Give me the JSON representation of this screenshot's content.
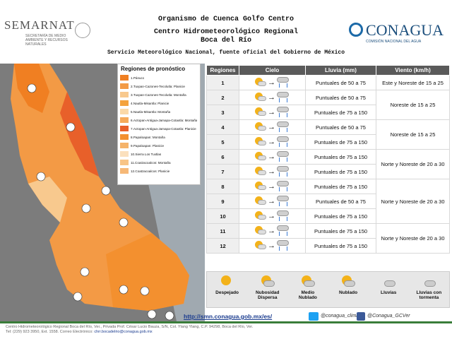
{
  "header": {
    "logo_left": "SEMARNAT",
    "logo_left_sub": "SECRETARÍA DE MEDIO AMBIENTE Y RECURSOS NATURALES",
    "title_line1": "Organismo de Cuenca Golfo Centro",
    "title_line2": "Centro Hidrometeorológico Regional",
    "title_line3": "Boca del Río",
    "subtitle": "Servicio Meteorológico Nacional, fuente oficial del Gobierno de México",
    "logo_right": "CONAGUA",
    "logo_right_sub": "COMISIÓN NACIONAL DEL AGUA"
  },
  "legend": {
    "title": "Regiones de pronóstico",
    "items": [
      {
        "label": "1.Pánuco",
        "color": "#f07f22"
      },
      {
        "label": "2.Tuxpan-Cazones-Tecolutla: Planicie",
        "color": "#f39a45"
      },
      {
        "label": "3.Tuxpan-Cazones-Tecolutla: Montaña",
        "color": "#f8c98e"
      },
      {
        "label": "4.Nautla-Misantla: Planicie",
        "color": "#f4a23c"
      },
      {
        "label": "5.Nautla-Misantla: Montaña",
        "color": "#fbd9a8"
      },
      {
        "label": "6.Actopan-Antigua-Jamapa-Cotaxtla: Montaña",
        "color": "#f6aa5a"
      },
      {
        "label": "7.Actopan-Antigua-Jamapa-Cotaxtla: Planicie",
        "color": "#e8602a"
      },
      {
        "label": "8.Papaloapan: Montaña",
        "color": "#f3902f"
      },
      {
        "label": "9.Papaloapan: Planicie",
        "color": "#f5b36a"
      },
      {
        "label": "10.Sierra Los Tuxtlas",
        "color": "#fbe0bd"
      },
      {
        "label": "11.Coatzacoalcos: Montaña",
        "color": "#f8c486"
      },
      {
        "label": "12.Coatzacoalcos: Planicie",
        "color": "#f6b877"
      }
    ]
  },
  "table": {
    "headers": [
      "Regiones",
      "Cielo",
      "Lluvia (mm)",
      "Viento (km/h)"
    ],
    "rows": [
      {
        "region": "1",
        "lluvia": "Puntuales de 50 a 75"
      },
      {
        "region": "2",
        "lluvia": "Puntuales de 50 a 75"
      },
      {
        "region": "3",
        "lluvia": "Puntuales de 75 a 150"
      },
      {
        "region": "4",
        "lluvia": "Puntuales de 50 a 75"
      },
      {
        "region": "5",
        "lluvia": "Puntuales de 75 a 150"
      },
      {
        "region": "6",
        "lluvia": "Puntuales de 75 a 150"
      },
      {
        "region": "7",
        "lluvia": "Puntuales de 75 a 150"
      },
      {
        "region": "8",
        "lluvia": "Puntuales de 75 a 150"
      },
      {
        "region": "9",
        "lluvia": "Puntuales de 50 a 75"
      },
      {
        "region": "10",
        "lluvia": "Puntuales de 75 a 150"
      },
      {
        "region": "11",
        "lluvia": "Puntuales de 75 a 150"
      },
      {
        "region": "12",
        "lluvia": "Puntuales de 75 a 150"
      }
    ],
    "viento_groups": [
      {
        "text": "Este y Noreste de 15 a 25"
      },
      {
        "text": "Noreste de 15 a 25"
      },
      {
        "text": "Noreste de 15 a 25"
      },
      {
        "text": "Norte y Noreste de 20 a 30"
      },
      {
        "text": "Norte y Noreste de 20 a 30"
      },
      {
        "text": "Norte y Noreste de 20 a 30"
      }
    ]
  },
  "weather_legend": [
    {
      "label": "Despejado"
    },
    {
      "label": "Nubosidad Dispersa"
    },
    {
      "label": "Medio Nublado"
    },
    {
      "label": "Nublado"
    },
    {
      "label": "Lluvias"
    },
    {
      "label": "Lluvias con tormenta"
    }
  ],
  "links": {
    "url": "http://smn.conagua.gob.mx/es/",
    "twitter": "@conagua_clima",
    "facebook": "@Conagua_GCVer"
  },
  "footer": {
    "line1": "Centro Hidrometeorológico Regional Boca del Río, Ver., Privada Prof. César Lucio Bauza, S/N, Col. Ylang Ylang, C.P. 94298, Boca del Río, Ver.",
    "line2_prefix": "Tel: (229) 923 3950, Ext. 1558. Correo Electrónico: ",
    "email": "chrr.bocadelrio@conagua.gob.mx"
  }
}
